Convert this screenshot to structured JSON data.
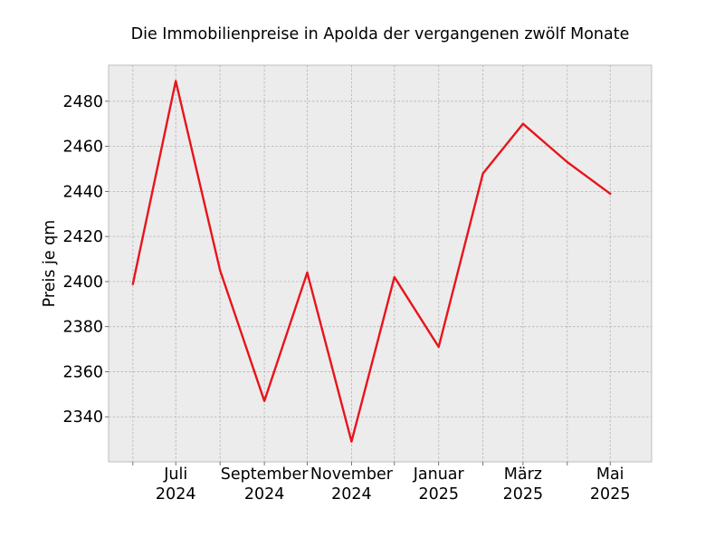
{
  "chart_data": {
    "type": "line",
    "title": "Die Immobilienpreise in Apolda der vergangenen zwölf Monate",
    "xlabel": "",
    "ylabel": "Preis je qm",
    "x": [
      "2024-06",
      "2024-07",
      "2024-08",
      "2024-09",
      "2024-10",
      "2024-11",
      "2024-12",
      "2025-01",
      "2025-02",
      "2025-03",
      "2025-04",
      "2025-05"
    ],
    "series": [
      {
        "values": [
          2399,
          2489,
          2405,
          2347,
          2404,
          2329,
          2402,
          2371,
          2448,
          2470,
          2453,
          2439
        ],
        "color": "#e8141c"
      }
    ],
    "xticks": [
      {
        "x": "2024-06",
        "label": [
          "",
          ""
        ]
      },
      {
        "x": "2024-07",
        "label": [
          "Juli",
          "2024"
        ]
      },
      {
        "x": "2024-08",
        "label": [
          "",
          ""
        ]
      },
      {
        "x": "2024-09",
        "label": [
          "September",
          "2024"
        ]
      },
      {
        "x": "2024-10",
        "label": [
          "",
          ""
        ]
      },
      {
        "x": "2024-11",
        "label": [
          "November",
          "2024"
        ]
      },
      {
        "x": "2024-12",
        "label": [
          "",
          ""
        ]
      },
      {
        "x": "2025-01",
        "label": [
          "Januar",
          "2025"
        ]
      },
      {
        "x": "2025-02",
        "label": [
          "",
          ""
        ]
      },
      {
        "x": "2025-03",
        "label": [
          "März",
          "2025"
        ]
      },
      {
        "x": "2025-04",
        "label": [
          "",
          ""
        ]
      },
      {
        "x": "2025-05",
        "label": [
          "Mai",
          "2025"
        ]
      }
    ],
    "yticks": [
      2340,
      2360,
      2380,
      2400,
      2420,
      2440,
      2460,
      2480
    ],
    "ylim": [
      2320.0,
      2496.0
    ],
    "xlim": [
      "2024-05-15",
      "2025-05-30"
    ],
    "grid": true,
    "legend": "none",
    "plot_background": "#ececec"
  }
}
